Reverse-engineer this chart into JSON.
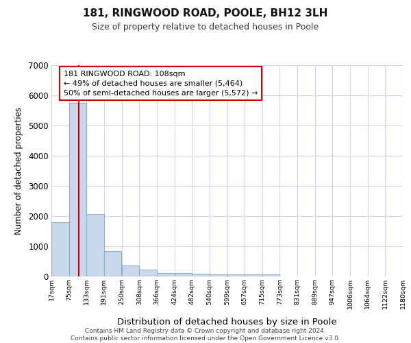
{
  "title": "181, RINGWOOD ROAD, POOLE, BH12 3LH",
  "subtitle": "Size of property relative to detached houses in Poole",
  "xlabel": "Distribution of detached houses by size in Poole",
  "ylabel": "Number of detached properties",
  "bar_color": "#c9d9eb",
  "bar_edge_color": "#8ab0cc",
  "bg_color": "#ffffff",
  "grid_color": "#d0d8e8",
  "red_line_x": 108,
  "annotation_text": "181 RINGWOOD ROAD: 108sqm\n← 49% of detached houses are smaller (5,464)\n50% of semi-detached houses are larger (5,572) →",
  "annotation_border_color": "#cc0000",
  "footnote": "Contains HM Land Registry data © Crown copyright and database right 2024.\nContains public sector information licensed under the Open Government Licence v3.0.",
  "bin_edges": [
    17,
    75,
    133,
    191,
    250,
    308,
    366,
    424,
    482,
    540,
    599,
    657,
    715,
    773,
    831,
    889,
    947,
    1006,
    1064,
    1122,
    1180
  ],
  "bin_labels": [
    "17sqm",
    "75sqm",
    "133sqm",
    "191sqm",
    "250sqm",
    "308sqm",
    "366sqm",
    "424sqm",
    "482sqm",
    "540sqm",
    "599sqm",
    "657sqm",
    "715sqm",
    "773sqm",
    "831sqm",
    "889sqm",
    "947sqm",
    "1006sqm",
    "1064sqm",
    "1122sqm",
    "1180sqm"
  ],
  "bar_heights": [
    1780,
    5750,
    2050,
    830,
    360,
    220,
    110,
    100,
    75,
    65,
    60,
    55,
    50,
    0,
    0,
    0,
    0,
    0,
    0,
    0
  ],
  "ylim": [
    0,
    7000
  ],
  "yticks": [
    0,
    1000,
    2000,
    3000,
    4000,
    5000,
    6000,
    7000
  ]
}
